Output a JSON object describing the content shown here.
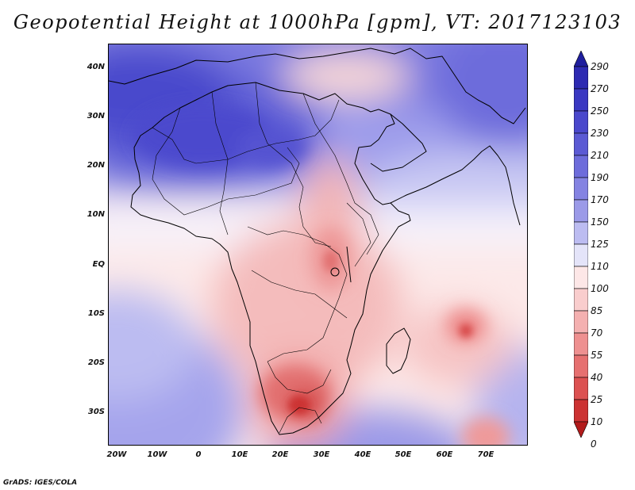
{
  "title": "Geopotential Height at 1000hPa [gpm], VT: 2017123103",
  "credit": "GrADS: IGES/COLA",
  "lat_labels": [
    "40N",
    "30N",
    "20N",
    "10N",
    "EQ",
    "10S",
    "20S",
    "30S"
  ],
  "lon_labels": [
    "20W",
    "10W",
    "0",
    "10E",
    "20E",
    "30E",
    "40E",
    "50E",
    "60E",
    "70E"
  ],
  "colorbar": {
    "levels": [
      "290",
      "270",
      "250",
      "230",
      "210",
      "190",
      "170",
      "150",
      "125",
      "110",
      "100",
      "85",
      "70",
      "55",
      "40",
      "25",
      "10",
      "0"
    ],
    "colors": [
      "#1f1e9e",
      "#2d2ab2",
      "#3a38c2",
      "#4a48cc",
      "#5b5ad4",
      "#6d6cdb",
      "#8483e2",
      "#9b9ae8",
      "#bcbcf1",
      "#e4e4f9",
      "#fde7e7",
      "#f9cdcd",
      "#f4b0b0",
      "#ee9090",
      "#e67070",
      "#dc5151",
      "#cc3232",
      "#b21b1b"
    ]
  }
}
